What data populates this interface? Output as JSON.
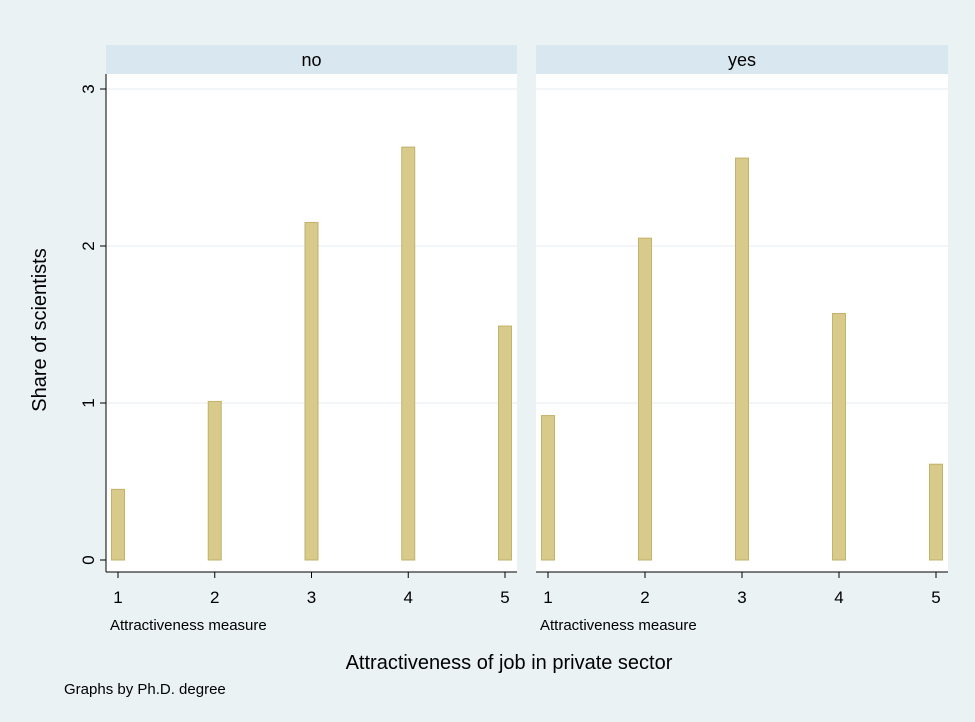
{
  "chart_data": {
    "type": "bar",
    "ylabel": "Share of scientists",
    "xlabel": "Attractiveness of job in private sector",
    "note": "Graphs by Ph.D. degree",
    "ylim": [
      0,
      3
    ],
    "yticks": [
      0,
      1,
      2,
      3
    ],
    "grid": true,
    "colors": {
      "bar": "#d7ca8a",
      "bar_edge": "#c2b26a",
      "strip": "#d9e7f0",
      "plot_bg": "#ffffff",
      "page_bg": "#eaf2f3"
    },
    "panels": [
      {
        "title": "no",
        "xlabel": "Attractiveness measure",
        "categories": [
          "1",
          "2",
          "3",
          "4",
          "5"
        ],
        "values": [
          0.45,
          1.01,
          2.15,
          2.63,
          1.49
        ]
      },
      {
        "title": "yes",
        "xlabel": "Attractiveness measure",
        "categories": [
          "1",
          "2",
          "3",
          "4",
          "5"
        ],
        "values": [
          0.92,
          2.05,
          2.56,
          1.57,
          0.61
        ]
      }
    ]
  }
}
